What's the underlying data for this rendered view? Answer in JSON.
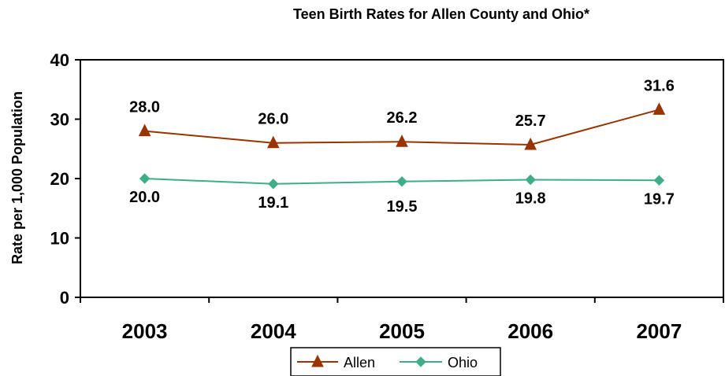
{
  "chart_data": {
    "type": "line",
    "title": "Teen Birth Rates for Allen County and Ohio*",
    "xlabel": "",
    "ylabel": "Rate per 1,000 Population",
    "categories": [
      "2003",
      "2004",
      "2005",
      "2006",
      "2007"
    ],
    "ylim": [
      0,
      40
    ],
    "yticks": [
      "0",
      "10",
      "20",
      "30",
      "40"
    ],
    "grid": false,
    "legend_position": "bottom",
    "series": [
      {
        "name": "Allen",
        "values": [
          28.0,
          26.0,
          26.2,
          25.7,
          31.6
        ],
        "labels": [
          "28.0",
          "26.0",
          "26.2",
          "25.7",
          "31.6"
        ],
        "color": "#993300",
        "marker": "triangle"
      },
      {
        "name": "Ohio",
        "values": [
          20.0,
          19.1,
          19.5,
          19.8,
          19.7
        ],
        "labels": [
          "20.0",
          "19.1",
          "19.5",
          "19.8",
          "19.7"
        ],
        "color": "#3fae88",
        "marker": "diamond"
      }
    ]
  }
}
